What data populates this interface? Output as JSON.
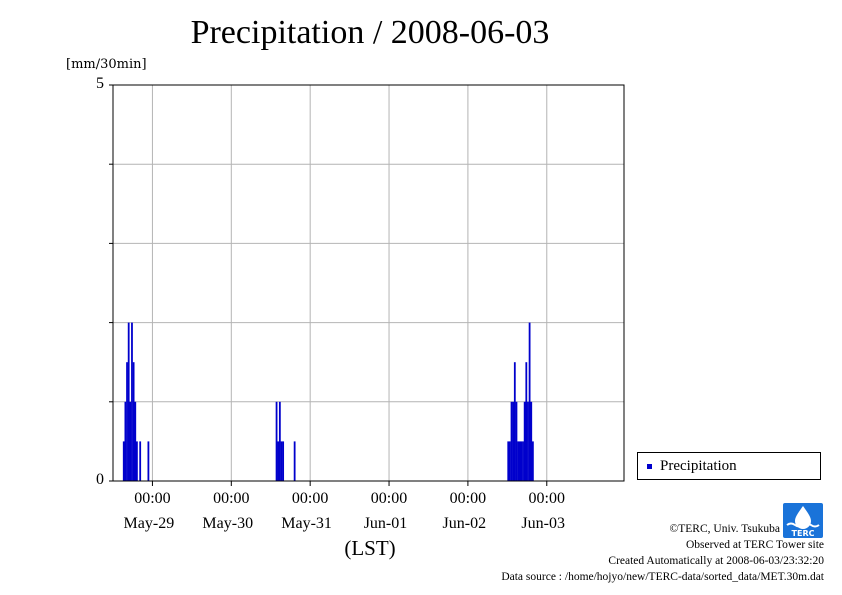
{
  "title": "Precipitation / 2008-06-03",
  "unit_label": "[mm/30min]",
  "x_axis_label": "(LST)",
  "legend": {
    "label": "Precipitation"
  },
  "credits": {
    "copyright": "©TERC, Univ. Tsukuba",
    "site": "Observed at TERC Tower site",
    "created": "Created Automatically at 2008-06-03/23:32:20",
    "source": "Data source : /home/hojyo/new/TERC-data/sorted_data/MET.30m.dat"
  },
  "logo": {
    "icon": "terc-logo-icon",
    "text": "TERC"
  },
  "colors": {
    "bar": "#0000cc",
    "grid": "#b4b4b4"
  },
  "chart_data": {
    "type": "bar",
    "title": "Precipitation / 2008-06-03",
    "ylabel": "[mm/30min]",
    "xlabel": "(LST)",
    "ylim": [
      0,
      5
    ],
    "y_tick_labels": [
      "0",
      "5"
    ],
    "y_gridlines": [
      1,
      2,
      3,
      4
    ],
    "x_tick_time_label": "00:00",
    "x_day_labels": [
      "May-29",
      "May-30",
      "May-31",
      "Jun-01",
      "Jun-02",
      "Jun-03"
    ],
    "xlim": [
      "2008-05-28 12:00",
      "2008-06-03 23:30"
    ],
    "grid": true,
    "legend_position": "right",
    "series": [
      {
        "name": "Precipitation",
        "points": [
          {
            "t": "2008-05-28 15:00",
            "v": 0.5
          },
          {
            "t": "2008-05-28 15:30",
            "v": 1.0
          },
          {
            "t": "2008-05-28 16:00",
            "v": 1.5
          },
          {
            "t": "2008-05-28 16:30",
            "v": 2.0
          },
          {
            "t": "2008-05-28 17:00",
            "v": 1.0
          },
          {
            "t": "2008-05-28 17:30",
            "v": 2.0
          },
          {
            "t": "2008-05-28 18:00",
            "v": 1.5
          },
          {
            "t": "2008-05-28 18:30",
            "v": 1.0
          },
          {
            "t": "2008-05-28 19:00",
            "v": 0.5
          },
          {
            "t": "2008-05-28 20:00",
            "v": 0.5
          },
          {
            "t": "2008-05-28 22:30",
            "v": 0.5
          },
          {
            "t": "2008-05-30 13:30",
            "v": 1.0
          },
          {
            "t": "2008-05-30 14:00",
            "v": 0.5
          },
          {
            "t": "2008-05-30 14:30",
            "v": 1.0
          },
          {
            "t": "2008-05-30 15:00",
            "v": 0.5
          },
          {
            "t": "2008-05-30 15:30",
            "v": 0.5
          },
          {
            "t": "2008-05-30 19:00",
            "v": 0.5
          },
          {
            "t": "2008-06-02 12:00",
            "v": 0.5
          },
          {
            "t": "2008-06-02 12:30",
            "v": 0.5
          },
          {
            "t": "2008-06-02 13:00",
            "v": 1.0
          },
          {
            "t": "2008-06-02 13:30",
            "v": 1.0
          },
          {
            "t": "2008-06-02 14:00",
            "v": 1.5
          },
          {
            "t": "2008-06-02 14:30",
            "v": 1.0
          },
          {
            "t": "2008-06-02 15:00",
            "v": 0.5
          },
          {
            "t": "2008-06-02 15:30",
            "v": 0.5
          },
          {
            "t": "2008-06-02 16:00",
            "v": 0.5
          },
          {
            "t": "2008-06-02 16:30",
            "v": 0.5
          },
          {
            "t": "2008-06-02 17:00",
            "v": 1.0
          },
          {
            "t": "2008-06-02 17:30",
            "v": 1.5
          },
          {
            "t": "2008-06-02 18:00",
            "v": 1.0
          },
          {
            "t": "2008-06-02 18:30",
            "v": 2.0
          },
          {
            "t": "2008-06-02 19:00",
            "v": 1.0
          },
          {
            "t": "2008-06-02 19:30",
            "v": 0.5
          }
        ]
      }
    ]
  }
}
